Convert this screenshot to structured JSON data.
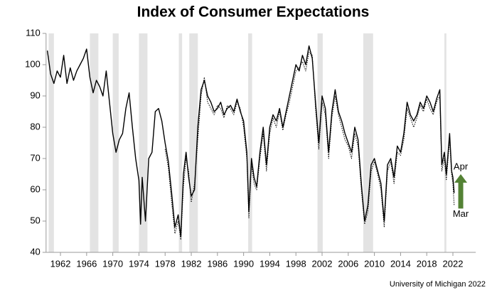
{
  "chart_data": {
    "type": "line",
    "title": "Index of Consumer Expectations",
    "source": "University of Michigan 2022",
    "xlim": [
      1959.8,
      2025.5
    ],
    "xticks": [
      1962,
      1966,
      1970,
      1974,
      1978,
      1982,
      1986,
      1990,
      1994,
      1998,
      2002,
      2006,
      2010,
      2014,
      2018,
      2022
    ],
    "ylim": [
      40,
      110
    ],
    "yticks": [
      40,
      50,
      60,
      70,
      80,
      90,
      100,
      110
    ],
    "recessions": [
      [
        1960.2,
        1961.0
      ],
      [
        1966.5,
        1967.8
      ],
      [
        1970.0,
        1970.9
      ],
      [
        1974.0,
        1975.3
      ],
      [
        1980.1,
        1980.6
      ],
      [
        1981.7,
        1983.0
      ],
      [
        1990.7,
        1991.3
      ],
      [
        2001.3,
        2002.1
      ],
      [
        2008.3,
        2009.8
      ],
      [
        2020.7,
        2021.0
      ]
    ],
    "recession_color": "#e3e3e3",
    "x": [
      1960.0,
      1960.5,
      1961.0,
      1961.5,
      1962.0,
      1962.5,
      1963.0,
      1963.5,
      1964.0,
      1964.5,
      1965.0,
      1965.5,
      1966.0,
      1966.5,
      1967.0,
      1967.5,
      1968.0,
      1968.5,
      1969.0,
      1969.5,
      1970.0,
      1970.5,
      1971.0,
      1971.5,
      1972.0,
      1972.5,
      1973.0,
      1973.5,
      1974.0,
      1974.25,
      1974.5,
      1975.0,
      1975.5,
      1976.0,
      1976.5,
      1977.0,
      1977.5,
      1978.0,
      1978.5,
      1979.0,
      1979.5,
      1980.0,
      1980.4,
      1980.8,
      1981.2,
      1981.6,
      1982.0,
      1982.5,
      1983.0,
      1983.5,
      1984.0,
      1984.5,
      1985.0,
      1985.5,
      1986.0,
      1986.5,
      1987.0,
      1987.5,
      1988.0,
      1988.5,
      1989.0,
      1989.5,
      1990.0,
      1990.5,
      1990.8,
      1991.2,
      1991.6,
      1992.0,
      1992.5,
      1993.0,
      1993.5,
      1994.0,
      1994.5,
      1995.0,
      1995.5,
      1996.0,
      1996.5,
      1997.0,
      1997.5,
      1998.0,
      1998.5,
      1999.0,
      1999.5,
      2000.0,
      2000.5,
      2001.0,
      2001.5,
      2002.0,
      2002.5,
      2003.0,
      2003.5,
      2004.0,
      2004.5,
      2005.0,
      2005.5,
      2006.0,
      2006.5,
      2007.0,
      2007.5,
      2008.0,
      2008.5,
      2009.0,
      2009.5,
      2010.0,
      2010.5,
      2011.0,
      2011.5,
      2012.0,
      2012.5,
      2013.0,
      2013.5,
      2014.0,
      2014.5,
      2015.0,
      2015.5,
      2016.0,
      2016.5,
      2017.0,
      2017.5,
      2018.0,
      2018.5,
      2019.0,
      2019.5,
      2020.0,
      2020.3,
      2020.7,
      2021.0,
      2021.5,
      2021.8,
      2022.0,
      2022.2
    ],
    "series": [
      {
        "color": "#000000",
        "style": "solid",
        "values": [
          104.5,
          97,
          94,
          98,
          96,
          103,
          94,
          99,
          95,
          98,
          100,
          102,
          105,
          96,
          91,
          95,
          93,
          90,
          98,
          88,
          78,
          72,
          76,
          78,
          86,
          91,
          80,
          70,
          63,
          49,
          64,
          50,
          70,
          72,
          85,
          86,
          82,
          75,
          69,
          59,
          48,
          52,
          45,
          65,
          72,
          64,
          58,
          60,
          80,
          92,
          95,
          90,
          88,
          85,
          86,
          88,
          84,
          86,
          87,
          85,
          89,
          85,
          82,
          72,
          53,
          70,
          64,
          61,
          72,
          80,
          68,
          80,
          84,
          82,
          86,
          80,
          85,
          90,
          95,
          100,
          98,
          103,
          100,
          106,
          102,
          88,
          75,
          90,
          86,
          72,
          85,
          92,
          85,
          82,
          78,
          75,
          72,
          80,
          76,
          62,
          50,
          55,
          68,
          70,
          66,
          62,
          50,
          68,
          70,
          64,
          74,
          72,
          78,
          88,
          84,
          82,
          84,
          88,
          86,
          90,
          88,
          85,
          89,
          92,
          68,
          72,
          65,
          78,
          66,
          64,
          59
        ]
      },
      {
        "color": "#000000",
        "style": "dotted",
        "values": [
          null,
          null,
          null,
          null,
          null,
          null,
          null,
          null,
          null,
          null,
          null,
          null,
          null,
          null,
          null,
          null,
          null,
          null,
          null,
          null,
          null,
          null,
          null,
          null,
          null,
          null,
          null,
          null,
          null,
          null,
          null,
          null,
          null,
          null,
          null,
          null,
          null,
          73,
          67,
          56,
          46,
          50,
          44,
          61,
          70,
          66,
          56,
          62,
          76,
          90,
          96,
          88,
          86,
          84,
          87,
          86,
          83,
          87,
          86,
          84,
          88,
          86,
          80,
          70,
          51,
          68,
          62,
          60,
          70,
          78,
          66,
          78,
          83,
          80,
          85,
          79,
          84,
          88,
          93,
          98,
          99,
          101,
          98,
          104,
          103,
          86,
          73,
          88,
          84,
          70,
          83,
          90,
          84,
          80,
          76,
          74,
          70,
          78,
          74,
          60,
          49,
          53,
          66,
          69,
          65,
          60,
          48,
          66,
          69,
          62,
          72,
          71,
          76,
          86,
          83,
          80,
          83,
          87,
          85,
          89,
          86,
          84,
          88,
          90,
          66,
          70,
          63,
          76,
          65,
          62,
          55
        ]
      }
    ],
    "arrow": {
      "x": 2023.2,
      "from": 54,
      "to": 65,
      "color": "#548235",
      "from_label": "Mar",
      "to_label": "Apr"
    }
  }
}
